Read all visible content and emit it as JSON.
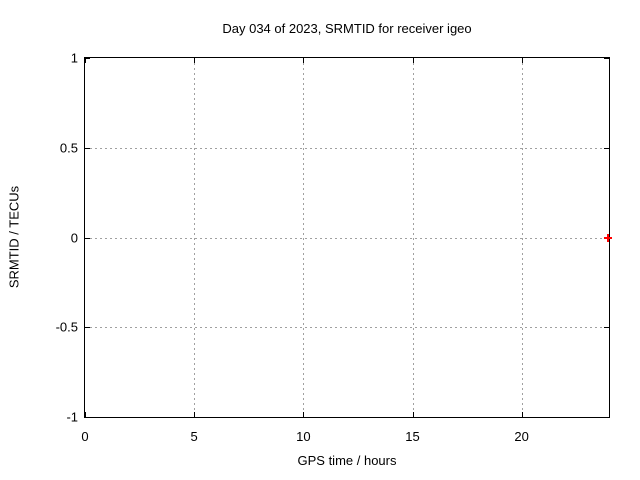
{
  "colors": {
    "background": "#ffffff",
    "frame": "#000000",
    "text": "#000000",
    "grid": "#a0a0a0",
    "point": "#ff0000"
  },
  "chart_data": {
    "type": "scatter",
    "title": "Day 034 of 2023, SRMTID for receiver igeo",
    "xlabel": "GPS time / hours",
    "ylabel": "SRMTID / TECUs",
    "xlim": [
      0,
      24
    ],
    "ylim": [
      -1,
      1
    ],
    "xticks": [
      0,
      5,
      10,
      15,
      20
    ],
    "yticks": [
      1,
      0.5,
      0,
      -0.5,
      -1
    ],
    "xtick_labels": [
      "0",
      "5",
      "10",
      "15",
      "20"
    ],
    "ytick_labels": [
      "1",
      "0.5",
      "0",
      "-0.5",
      "-1"
    ],
    "grid": true,
    "legend_visible": false,
    "series": [
      {
        "name": "SRMTID",
        "marker": "plus",
        "color": "#ff0000",
        "points": [
          {
            "x": 23.95,
            "y": 0.0
          }
        ]
      }
    ]
  }
}
